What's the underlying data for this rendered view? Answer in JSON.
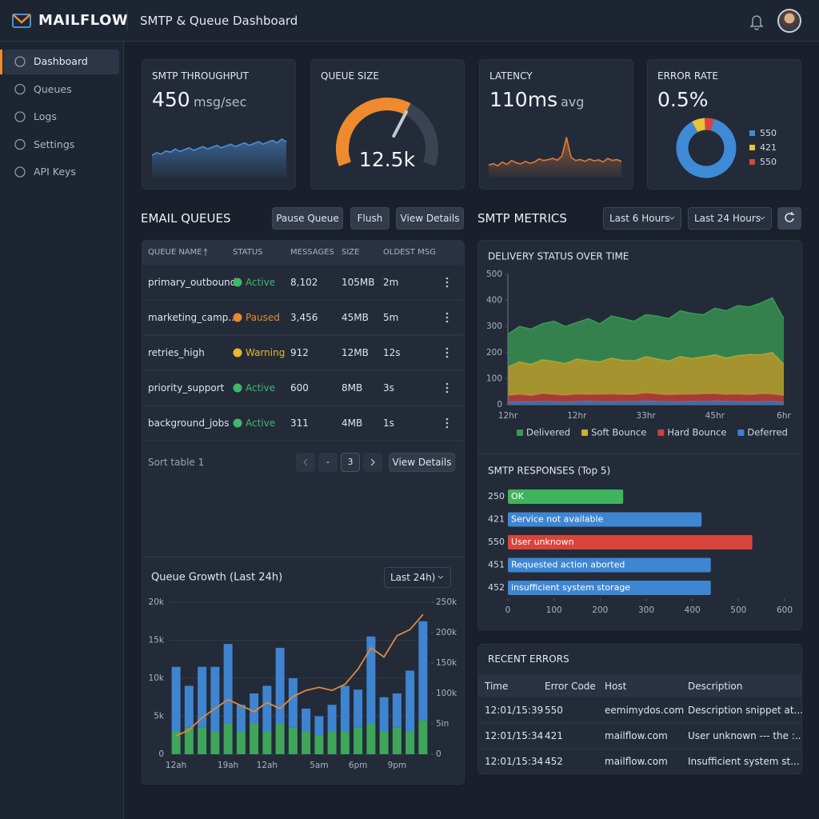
{
  "header": {
    "brand": "MAILFLOW",
    "title": "SMTP & Queue Dashboard"
  },
  "nav": [
    "Dashboard",
    "Queues",
    "Logs",
    "Settings",
    "API Keys"
  ],
  "email_queues": {
    "title": "EMAIL QUEUES",
    "actions": [
      "Pause Queue",
      "Flush",
      "View Details"
    ],
    "columns": [
      "QUEUE NAME",
      "STATUS",
      "MESSAGES",
      "SIZE",
      "OLDEST MSG"
    ],
    "rows": [
      {
        "name": "primary_outbound",
        "status": "Active",
        "status_color": "#3fb868",
        "messages": "8,102",
        "size": "105MB",
        "oldest": "2m"
      },
      {
        "name": "marketing_camp...",
        "status": "Paused",
        "status_color": "#e8872e",
        "messages": "3,456",
        "size": "45MB",
        "oldest": "5m"
      },
      {
        "name": "retries_high",
        "status": "Warning",
        "status_color": "#e8b92e",
        "messages": "912",
        "size": "12MB",
        "oldest": "12s"
      },
      {
        "name": "priority_support",
        "status": "Active",
        "status_color": "#3fb868",
        "messages": "600",
        "size": "8MB",
        "oldest": "3s"
      },
      {
        "name": "background_jobs",
        "status": "Active",
        "status_color": "#3fb868",
        "messages": "311",
        "size": "4MB",
        "oldest": "1s"
      }
    ],
    "footer": "Sort table 1",
    "pages": [
      "-",
      "3"
    ],
    "footer_action": "View Details"
  },
  "smtp_metrics": {
    "title": "SMTP METRICS",
    "ranges": [
      "Last 6 Hours",
      "Last 24 Hours"
    ]
  },
  "recent_errors": {
    "title": "RECENT ERRORS",
    "columns": [
      "Time",
      "Error Code",
      "Host",
      "Description"
    ],
    "rows": [
      [
        "12:01/15:39",
        "550",
        "eemimydos.com",
        "Description snippet at..."
      ],
      [
        "12:01/15:34",
        "421",
        "mailflow.com",
        "User unknown --- the :.."
      ],
      [
        "12:01/15:34",
        "452",
        "mailflow.com",
        "Insufficient system st..."
      ]
    ]
  },
  "chart_data": [
    {
      "type": "line",
      "title": "SMTP THROUGHPUT",
      "kpi": "450",
      "unit": "msg/sec",
      "color": "#4a90d9",
      "ylim": [
        0,
        400
      ],
      "values": [
        180,
        200,
        190,
        215,
        205,
        230,
        210,
        225,
        240,
        220,
        235,
        250,
        230,
        245,
        260,
        240,
        255,
        270,
        250,
        265,
        280,
        260,
        275,
        290,
        270,
        285,
        300,
        280,
        310,
        290
      ]
    },
    {
      "type": "gauge",
      "title": "QUEUE SIZE",
      "value": 12500,
      "value_label": "12.5k",
      "ylim": [
        0,
        20000
      ],
      "color": "#ef8a2e"
    },
    {
      "type": "line",
      "title": "LATENCY",
      "kpi": "110ms",
      "unit": "avg",
      "color": "#e07b39",
      "ylim": [
        0,
        160
      ],
      "values": [
        40,
        45,
        38,
        50,
        42,
        55,
        48,
        44,
        52,
        46,
        50,
        60,
        55,
        58,
        62,
        56,
        70,
        130,
        65,
        55,
        58,
        52,
        60,
        54,
        57,
        50,
        62,
        55,
        58,
        52
      ]
    },
    {
      "type": "pie",
      "title": "ERROR RATE",
      "kpi": "0.5%",
      "categories": [
        "550",
        "421",
        "550"
      ],
      "values": [
        88,
        7,
        5
      ],
      "colors": [
        "#3f8ad6",
        "#e8c23a",
        "#d9453b"
      ]
    },
    {
      "type": "area",
      "title": "DELIVERY STATUS OVER TIME",
      "stacked": true,
      "grid": false,
      "categories": [
        "12hr",
        null,
        null,
        null,
        null,
        null,
        "12hr",
        null,
        null,
        null,
        null,
        null,
        "33hr",
        null,
        null,
        null,
        null,
        null,
        "45hr",
        null,
        null,
        null,
        null,
        null,
        "6hr"
      ],
      "ylim": [
        0,
        500
      ],
      "yticks": [
        0,
        100,
        200,
        300,
        400,
        500
      ],
      "series": [
        {
          "name": "Delivered",
          "color": "#3a9a55",
          "values": [
            125,
            135,
            135,
            137,
            153,
            142,
            139,
            161,
            145,
            161,
            159,
            151,
            160,
            164,
            162,
            175,
            172,
            161,
            178,
            181,
            191,
            182,
            198,
            209,
            175
          ]
        },
        {
          "name": "Soft Bounce",
          "color": "#c9b12c",
          "values": [
            110,
            125,
            120,
            130,
            128,
            122,
            135,
            130,
            125,
            138,
            132,
            130,
            140,
            135,
            130,
            145,
            138,
            142,
            150,
            140,
            148,
            155,
            150,
            160,
            120
          ]
        },
        {
          "name": "Hard Bounce",
          "color": "#c9433a",
          "values": [
            25,
            28,
            24,
            30,
            27,
            26,
            29,
            25,
            28,
            30,
            26,
            27,
            31,
            28,
            26,
            29,
            27,
            30,
            28,
            26,
            29,
            27,
            30,
            28,
            25
          ]
        },
        {
          "name": "Deferred",
          "color": "#3f7fcf",
          "values": [
            10,
            12,
            11,
            13,
            12,
            10,
            12,
            14,
            12,
            11,
            13,
            12,
            14,
            13,
            12,
            11,
            13,
            12,
            14,
            13,
            12,
            11,
            12,
            13,
            10
          ]
        }
      ]
    },
    {
      "type": "hbar",
      "title": "SMTP RESPONSES (Top 5)",
      "categories": [
        "250",
        "421",
        "550",
        "451",
        "452"
      ],
      "descriptions": [
        "OK",
        "Service not available",
        "User unknown",
        "Requested action aborted",
        "insufficient system storage"
      ],
      "values": [
        250,
        420,
        530,
        440,
        440
      ],
      "colors": [
        "#3fb35e",
        "#3f86d2",
        "#d9453b",
        "#3f86d2",
        "#3f86d2"
      ],
      "xlim": [
        0,
        600
      ],
      "xticks": [
        0,
        100,
        200,
        300,
        400,
        500,
        600
      ]
    },
    {
      "type": "combo",
      "title": "Queue Growth (Last 24h)",
      "range": "Last 24h)",
      "stacked": true,
      "grid": true,
      "categories": [
        "12ah",
        null,
        null,
        null,
        "19ah",
        null,
        null,
        "12ah",
        null,
        null,
        null,
        "5am",
        null,
        null,
        "6pm",
        null,
        null,
        "9pm",
        null,
        null
      ],
      "ylim": [
        0,
        20000
      ],
      "yticks": [
        0,
        {
          "value": 5000,
          "label": "5k"
        },
        {
          "value": 10000,
          "label": "10k"
        },
        {
          "value": 15000,
          "label": "15k"
        },
        {
          "value": 20000,
          "label": "20k"
        }
      ],
      "y2lim": [
        0,
        250000
      ],
      "y2ticks": [
        0,
        {
          "value": 50000,
          "label": "5in"
        },
        {
          "value": 100000,
          "label": "100k"
        },
        {
          "value": 150000,
          "label": "150k"
        },
        {
          "value": 200000,
          "label": "200k"
        },
        {
          "value": 250000,
          "label": "250k"
        }
      ],
      "series": [
        {
          "color": "#3fa55a",
          "values": [
            3000,
            3500,
            3500,
            3000,
            4000,
            3000,
            4000,
            3000,
            4000,
            3500,
            3000,
            2500,
            3000,
            3000,
            3500,
            4000,
            3000,
            3500,
            3000,
            4500
          ]
        },
        {
          "color": "#3f84d0",
          "values": [
            8500,
            5500,
            8000,
            8500,
            10500,
            3500,
            4000,
            6000,
            10000,
            6500,
            3000,
            2500,
            3500,
            6000,
            5000,
            11500,
            4500,
            4500,
            8000,
            13000
          ]
        },
        {
          "color": "#e08a3a",
          "axis": "y2",
          "values": [
            30000,
            40000,
            60000,
            75000,
            90000,
            80000,
            70000,
            85000,
            75000,
            95000,
            105000,
            110000,
            105000,
            115000,
            140000,
            175000,
            160000,
            195000,
            205000,
            230000
          ]
        }
      ]
    }
  ]
}
